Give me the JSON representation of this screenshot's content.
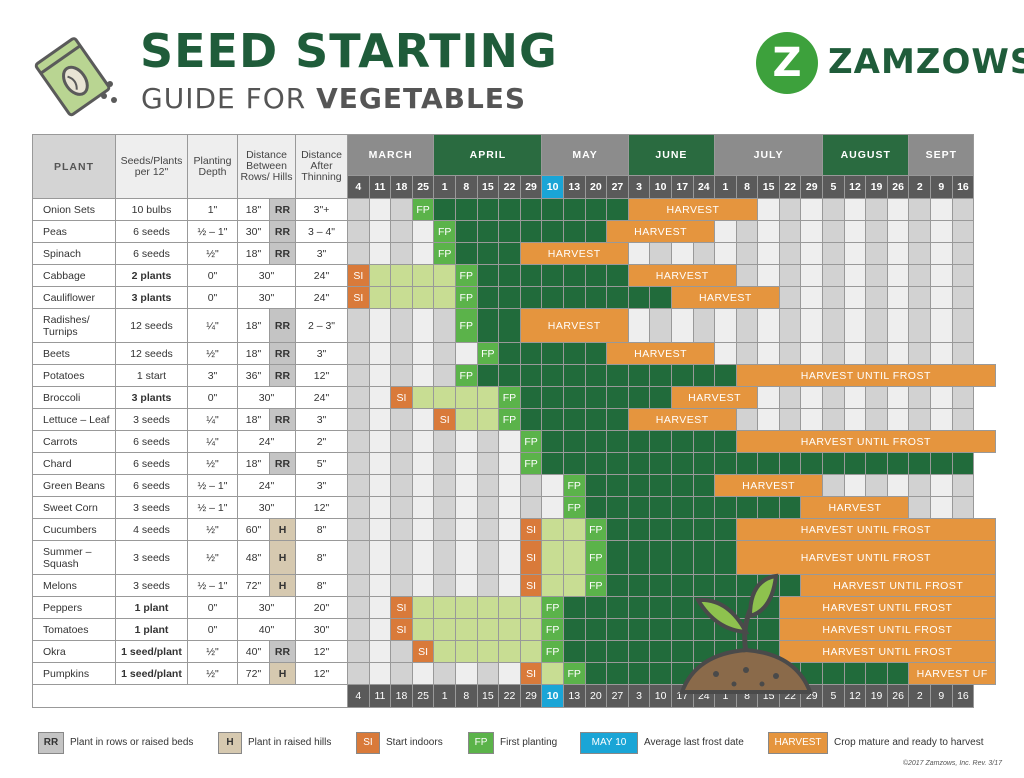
{
  "header": {
    "title_line1": "SEED STARTING",
    "title_line2_a": "GUIDE FOR ",
    "title_line2_b": "VEGETABLES",
    "logo_mark": "Z",
    "logo_text": "ZAMZOWS"
  },
  "columns": {
    "plant": "PLANT",
    "seeds": "Seeds/Plants per 12\"",
    "depth": "Planting Depth",
    "distance": "Distance Between Rows/ Hills",
    "thinning": "Distance After Thinning"
  },
  "months": [
    {
      "name": "MARCH",
      "span": 4,
      "color": "#8c8c8c"
    },
    {
      "name": "APRIL",
      "span": 5,
      "color": "#2a6b40"
    },
    {
      "name": "MAY",
      "span": 4,
      "color": "#8c8c8c"
    },
    {
      "name": "JUNE",
      "span": 4,
      "color": "#2a6b40"
    },
    {
      "name": "JULY",
      "span": 5,
      "color": "#8c8c8c"
    },
    {
      "name": "AUGUST",
      "span": 4,
      "color": "#2a6b40"
    },
    {
      "name": "SEPT",
      "span": 3,
      "color": "#8c8c8c"
    }
  ],
  "weeks": [
    "4",
    "11",
    "18",
    "25",
    "1",
    "8",
    "15",
    "22",
    "29",
    "10",
    "13",
    "20",
    "27",
    "3",
    "10",
    "17",
    "24",
    "1",
    "8",
    "15",
    "22",
    "29",
    "5",
    "12",
    "19",
    "26",
    "2",
    "9",
    "16"
  ],
  "highlight_week_index": 9,
  "rows": [
    {
      "name": "Onion Sets",
      "seeds": "10 bulbs",
      "seeds_bold": false,
      "depth": "1\"",
      "dist": "18\"",
      "tag": "RR",
      "thin": "3\"+",
      "si": null,
      "fp": 3,
      "harvest": [
        13,
        18,
        "HARVEST"
      ]
    },
    {
      "name": "Peas",
      "seeds": "6 seeds",
      "seeds_bold": false,
      "depth": "½ – 1\"",
      "dist": "30\"",
      "tag": "RR",
      "thin": "3 – 4\"",
      "si": null,
      "fp": 4,
      "harvest": [
        12,
        16,
        "HARVEST"
      ]
    },
    {
      "name": "Spinach",
      "seeds": "6 seeds",
      "seeds_bold": false,
      "depth": "½\"",
      "dist": "18\"",
      "tag": "RR",
      "thin": "3\"",
      "si": null,
      "fp": 4,
      "harvest": [
        8,
        12,
        "HARVEST"
      ]
    },
    {
      "name": "Cabbage",
      "seeds": "2 plants",
      "seeds_bold": true,
      "depth": "0\"",
      "dist": "30\"",
      "tag": "",
      "thin": "24\"",
      "si": 0,
      "fp": 5,
      "harvest": [
        13,
        17,
        "HARVEST"
      ]
    },
    {
      "name": "Cauliflower",
      "seeds": "3 plants",
      "seeds_bold": true,
      "depth": "0\"",
      "dist": "30\"",
      "tag": "",
      "thin": "24\"",
      "si": 0,
      "fp": 5,
      "harvest": [
        15,
        19,
        "HARVEST"
      ]
    },
    {
      "name": "Radishes/ Turnips",
      "seeds": "12 seeds",
      "seeds_bold": false,
      "depth": "¼\"",
      "dist": "18\"",
      "tag": "RR",
      "thin": "2 – 3\"",
      "si": null,
      "fp": 5,
      "harvest": [
        8,
        12,
        "HARVEST"
      ],
      "tall": true
    },
    {
      "name": "Beets",
      "seeds": "12 seeds",
      "seeds_bold": false,
      "depth": "½\"",
      "dist": "18\"",
      "tag": "RR",
      "thin": "3\"",
      "si": null,
      "fp": 6,
      "harvest": [
        12,
        16,
        "HARVEST"
      ]
    },
    {
      "name": "Potatoes",
      "seeds": "1 start",
      "seeds_bold": false,
      "depth": "3\"",
      "dist": "36\"",
      "tag": "RR",
      "thin": "12\"",
      "si": null,
      "fp": 5,
      "harvest": [
        18,
        29,
        "HARVEST UNTIL FROST"
      ]
    },
    {
      "name": "Broccoli",
      "seeds": "3 plants",
      "seeds_bold": true,
      "depth": "0\"",
      "dist": "30\"",
      "tag": "",
      "thin": "24\"",
      "si": 2,
      "fp": 7,
      "harvest": [
        15,
        18,
        "HARVEST"
      ]
    },
    {
      "name": "Lettuce – Leaf",
      "seeds": "3 seeds",
      "seeds_bold": false,
      "depth": "¼\"",
      "dist": "18\"",
      "tag": "RR",
      "thin": "3\"",
      "si": 4,
      "fp": 7,
      "harvest": [
        13,
        17,
        "HARVEST"
      ]
    },
    {
      "name": "Carrots",
      "seeds": "6 seeds",
      "seeds_bold": false,
      "depth": "¼\"",
      "dist": "24\"",
      "tag": "",
      "thin": "2\"",
      "si": null,
      "fp": 8,
      "harvest": [
        18,
        29,
        "HARVEST UNTIL FROST"
      ]
    },
    {
      "name": "Chard",
      "seeds": "6 seeds",
      "seeds_bold": false,
      "depth": "½\"",
      "dist": "18\"",
      "tag": "RR",
      "thin": "5\"",
      "si": null,
      "fp": 8,
      "harvest": null
    },
    {
      "name": "Green Beans",
      "seeds": "6 seeds",
      "seeds_bold": false,
      "depth": "½ – 1\"",
      "dist": "24\"",
      "tag": "",
      "thin": "3\"",
      "si": null,
      "fp": 10,
      "harvest": [
        17,
        21,
        "HARVEST"
      ]
    },
    {
      "name": "Sweet Corn",
      "seeds": "3 seeds",
      "seeds_bold": false,
      "depth": "½ – 1\"",
      "dist": "30\"",
      "tag": "",
      "thin": "12\"",
      "si": null,
      "fp": 10,
      "harvest": [
        21,
        25,
        "HARVEST"
      ]
    },
    {
      "name": "Cucumbers",
      "seeds": "4 seeds",
      "seeds_bold": false,
      "depth": "½\"",
      "dist": "60\"",
      "tag": "H",
      "thin": "8\"",
      "si": 8,
      "fp": 11,
      "harvest": [
        18,
        29,
        "HARVEST UNTIL FROST"
      ]
    },
    {
      "name": "Summer – Squash",
      "seeds": "3 seeds",
      "seeds_bold": false,
      "depth": "½\"",
      "dist": "48\"",
      "tag": "H",
      "thin": "8\"",
      "si": 8,
      "fp": 11,
      "harvest": [
        18,
        29,
        "HARVEST UNTIL FROST"
      ],
      "tall": true
    },
    {
      "name": "Melons",
      "seeds": "3 seeds",
      "seeds_bold": false,
      "depth": "½ – 1\"",
      "dist": "72\"",
      "tag": "H",
      "thin": "8\"",
      "si": 8,
      "fp": 11,
      "harvest": [
        21,
        29,
        "HARVEST UNTIL FROST"
      ]
    },
    {
      "name": "Peppers",
      "seeds": "1 plant",
      "seeds_bold": true,
      "depth": "0\"",
      "dist": "30\"",
      "tag": "",
      "thin": "20\"",
      "si": 2,
      "fp": 9,
      "harvest": [
        20,
        29,
        "HARVEST UNTIL FROST"
      ]
    },
    {
      "name": "Tomatoes",
      "seeds": "1 plant",
      "seeds_bold": true,
      "depth": "0\"",
      "dist": "40\"",
      "tag": "",
      "thin": "30\"",
      "si": 2,
      "fp": 9,
      "harvest": [
        20,
        29,
        "HARVEST UNTIL FROST"
      ]
    },
    {
      "name": "Okra",
      "seeds": "1 seed/plant",
      "seeds_bold": true,
      "depth": "½\"",
      "dist": "40\"",
      "tag": "RR",
      "thin": "12\"",
      "si": 3,
      "fp": 9,
      "harvest": [
        20,
        29,
        "HARVEST UNTIL FROST"
      ]
    },
    {
      "name": "Pumpkins",
      "seeds": "1 seed/plant",
      "seeds_bold": true,
      "depth": "½\"",
      "dist": "72\"",
      "tag": "H",
      "thin": "12\"",
      "si": 8,
      "fp": 10,
      "harvest": [
        26,
        29,
        "HARVEST UF"
      ]
    }
  ],
  "legend": {
    "rr_box": "RR",
    "rr_text": "Plant in rows or raised beds",
    "h_box": "H",
    "h_text": "Plant in raised hills",
    "si_box": "SI",
    "si_text": "Start indoors",
    "fp_box": "FP",
    "fp_text": "First planting",
    "may_box": "MAY 10",
    "may_text": "Average last frost date",
    "harv_box": "HARVEST",
    "harv_text": "Crop mature and ready to harvest"
  },
  "copyright": "©2017 Zamzows, Inc. Rev. 3/17",
  "colors": {
    "dark_green": "#1f5c3a",
    "grow": "#216b3b",
    "first_planting": "#5bb34a",
    "start_indoors": "#d97a3a",
    "indoor_growth": "#c8dd93",
    "harvest": "#e5953e",
    "frost_date": "#1aa5d6",
    "logo_green": "#3da13c"
  }
}
